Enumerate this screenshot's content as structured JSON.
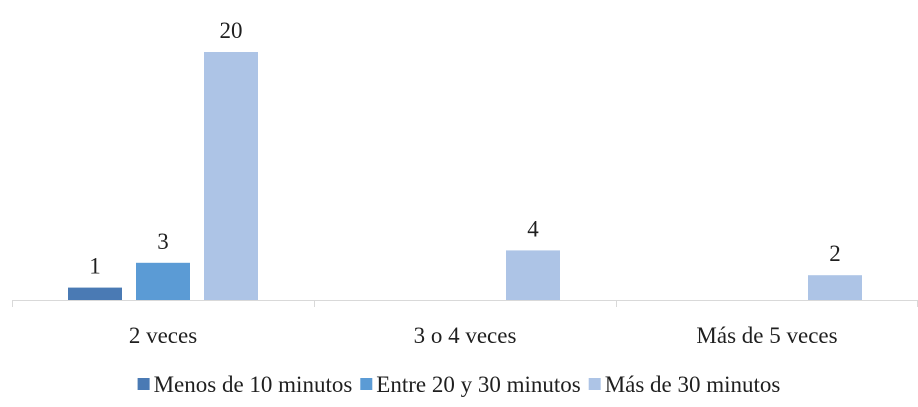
{
  "chart_data": {
    "type": "bar",
    "title": "",
    "xlabel": "",
    "ylabel": "",
    "categories": [
      "2 veces",
      "3 o 4 veces",
      "Más de 5 veces"
    ],
    "series": [
      {
        "name": "Menos de 10 minutos",
        "color": "#4a7ab4",
        "values": [
          1,
          null,
          null
        ]
      },
      {
        "name": "Entre 20 y 30 minutos",
        "color": "#5b9bd5",
        "values": [
          3,
          null,
          null
        ]
      },
      {
        "name": "Más de 30 minutos",
        "color": "#adc4e6",
        "values": [
          20,
          4,
          2
        ]
      }
    ],
    "ylim": [
      0,
      20
    ],
    "grid": false,
    "legend_position": "bottom",
    "data_labels": true
  }
}
